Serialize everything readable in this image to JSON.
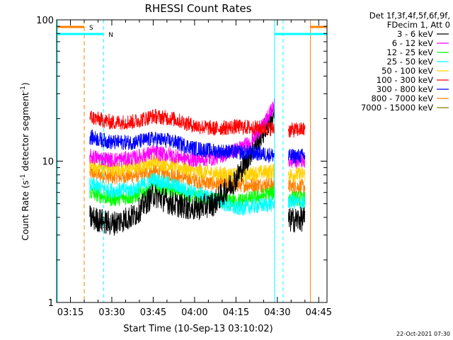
{
  "chart_data": {
    "type": "line",
    "title": "RHESSI Count Rates",
    "xlabel": "Start Time (10-Sep-13 03:10:02)",
    "ylabel_main": "Count Rate (s",
    "ylabel_sup1": "-1",
    "ylabel_mid": " detector segment",
    "ylabel_sup2": "-1",
    "ylabel_end": ")",
    "y_scale": "log",
    "xlim": [
      "03:10",
      "04:48"
    ],
    "ylim": [
      1,
      100
    ],
    "x_ticks": [
      "03:15",
      "03:30",
      "03:45",
      "04:00",
      "04:15",
      "04:30",
      "04:45"
    ],
    "y_ticks": [
      "1",
      "10",
      "100"
    ],
    "legend_header": [
      "Det 1f,3f,4f,5f,6f,9f,",
      "FDecim 1, Att 0"
    ],
    "legend_position": "right",
    "timestamp": "22-Oct-2021 07:30",
    "data_start": "03:22",
    "data_end": "04:40",
    "gap": [
      "04:29",
      "04:34"
    ],
    "saa": {
      "label": "S",
      "start": "03:20",
      "end": "04:42",
      "color": "#ff8000"
    },
    "night": {
      "label": "N",
      "start": "03:27",
      "end": "04:29",
      "color": "#00ffff"
    },
    "series": [
      {
        "name": "3 - 6 keV",
        "color": "#000000",
        "values": [
          [
            "03:22",
            4.0
          ],
          [
            "03:30",
            3.6
          ],
          [
            "03:38",
            4.1
          ],
          [
            "03:45",
            5.8
          ],
          [
            "03:52",
            5.0
          ],
          [
            "04:00",
            4.6
          ],
          [
            "04:07",
            5.0
          ],
          [
            "04:15",
            7.5
          ],
          [
            "04:22",
            13.0
          ],
          [
            "04:29",
            22.0
          ],
          [
            "04:34",
            3.8
          ],
          [
            "04:40",
            3.9
          ]
        ]
      },
      {
        "name": "6 - 12 keV",
        "color": "#ff00ff",
        "values": [
          [
            "03:22",
            10.8
          ],
          [
            "03:30",
            10.2
          ],
          [
            "03:38",
            10.5
          ],
          [
            "03:45",
            11.5
          ],
          [
            "03:52",
            11.0
          ],
          [
            "04:00",
            10.2
          ],
          [
            "04:07",
            10.5
          ],
          [
            "04:15",
            12.0
          ],
          [
            "04:20",
            13.5
          ],
          [
            "04:25",
            18.0
          ],
          [
            "04:29",
            25.0
          ],
          [
            "04:34",
            10.0
          ],
          [
            "04:40",
            10.2
          ]
        ]
      },
      {
        "name": "12 - 25 keV",
        "color": "#00ff00",
        "values": [
          [
            "03:22",
            6.0
          ],
          [
            "03:30",
            5.4
          ],
          [
            "03:38",
            5.6
          ],
          [
            "03:45",
            6.6
          ],
          [
            "03:52",
            6.2
          ],
          [
            "04:00",
            5.6
          ],
          [
            "04:07",
            5.3
          ],
          [
            "04:15",
            5.2
          ],
          [
            "04:22",
            5.5
          ],
          [
            "04:29",
            6.0
          ],
          [
            "04:34",
            5.5
          ],
          [
            "04:40",
            5.4
          ]
        ]
      },
      {
        "name": "25 - 50 keV",
        "color": "#00ffff",
        "values": [
          [
            "03:22",
            6.8
          ],
          [
            "03:30",
            6.2
          ],
          [
            "03:38",
            6.3
          ],
          [
            "03:45",
            7.4
          ],
          [
            "03:52",
            6.8
          ],
          [
            "04:00",
            6.0
          ],
          [
            "04:07",
            5.4
          ],
          [
            "04:15",
            4.6
          ],
          [
            "04:22",
            4.8
          ],
          [
            "04:29",
            5.0
          ],
          [
            "04:34",
            5.2
          ],
          [
            "04:40",
            5.0
          ]
        ]
      },
      {
        "name": "50 - 100 keV",
        "color": "#ffd000",
        "values": [
          [
            "03:22",
            9.2
          ],
          [
            "03:30",
            8.8
          ],
          [
            "03:38",
            9.0
          ],
          [
            "03:45",
            9.9
          ],
          [
            "03:52",
            9.4
          ],
          [
            "04:00",
            8.5
          ],
          [
            "04:07",
            8.2
          ],
          [
            "04:15",
            8.0
          ],
          [
            "04:22",
            8.2
          ],
          [
            "04:29",
            8.5
          ],
          [
            "04:34",
            8.0
          ],
          [
            "04:40",
            8.1
          ]
        ]
      },
      {
        "name": "100 - 300 keV",
        "color": "#ff0000",
        "values": [
          [
            "03:22",
            20.5
          ],
          [
            "03:30",
            18.8
          ],
          [
            "03:38",
            19.0
          ],
          [
            "03:45",
            20.8
          ],
          [
            "03:52",
            20.0
          ],
          [
            "04:00",
            17.8
          ],
          [
            "04:07",
            17.0
          ],
          [
            "04:15",
            17.5
          ],
          [
            "04:22",
            17.2
          ],
          [
            "04:29",
            17.0
          ],
          [
            "04:34",
            16.5
          ],
          [
            "04:40",
            16.8
          ]
        ]
      },
      {
        "name": "300 - 800 keV",
        "color": "#0000ff",
        "values": [
          [
            "03:22",
            14.8
          ],
          [
            "03:30",
            13.6
          ],
          [
            "03:38",
            13.6
          ],
          [
            "03:45",
            14.4
          ],
          [
            "03:52",
            13.8
          ],
          [
            "04:00",
            12.3
          ],
          [
            "04:07",
            11.8
          ],
          [
            "04:15",
            11.6
          ],
          [
            "04:22",
            11.4
          ],
          [
            "04:29",
            11.0
          ],
          [
            "04:34",
            10.8
          ],
          [
            "04:40",
            10.9
          ]
        ]
      },
      {
        "name": "800 - 7000 keV",
        "color": "#ff8000",
        "values": [
          [
            "03:22",
            8.3
          ],
          [
            "03:30",
            7.7
          ],
          [
            "03:38",
            7.9
          ],
          [
            "03:45",
            8.4
          ],
          [
            "03:52",
            8.0
          ],
          [
            "04:00",
            7.3
          ],
          [
            "04:07",
            6.9
          ],
          [
            "04:15",
            6.8
          ],
          [
            "04:22",
            6.8
          ],
          [
            "04:29",
            6.8
          ],
          [
            "04:34",
            6.6
          ],
          [
            "04:40",
            6.6
          ]
        ]
      },
      {
        "name": "7000 - 15000 keV",
        "color": "#808000",
        "values": []
      }
    ]
  }
}
